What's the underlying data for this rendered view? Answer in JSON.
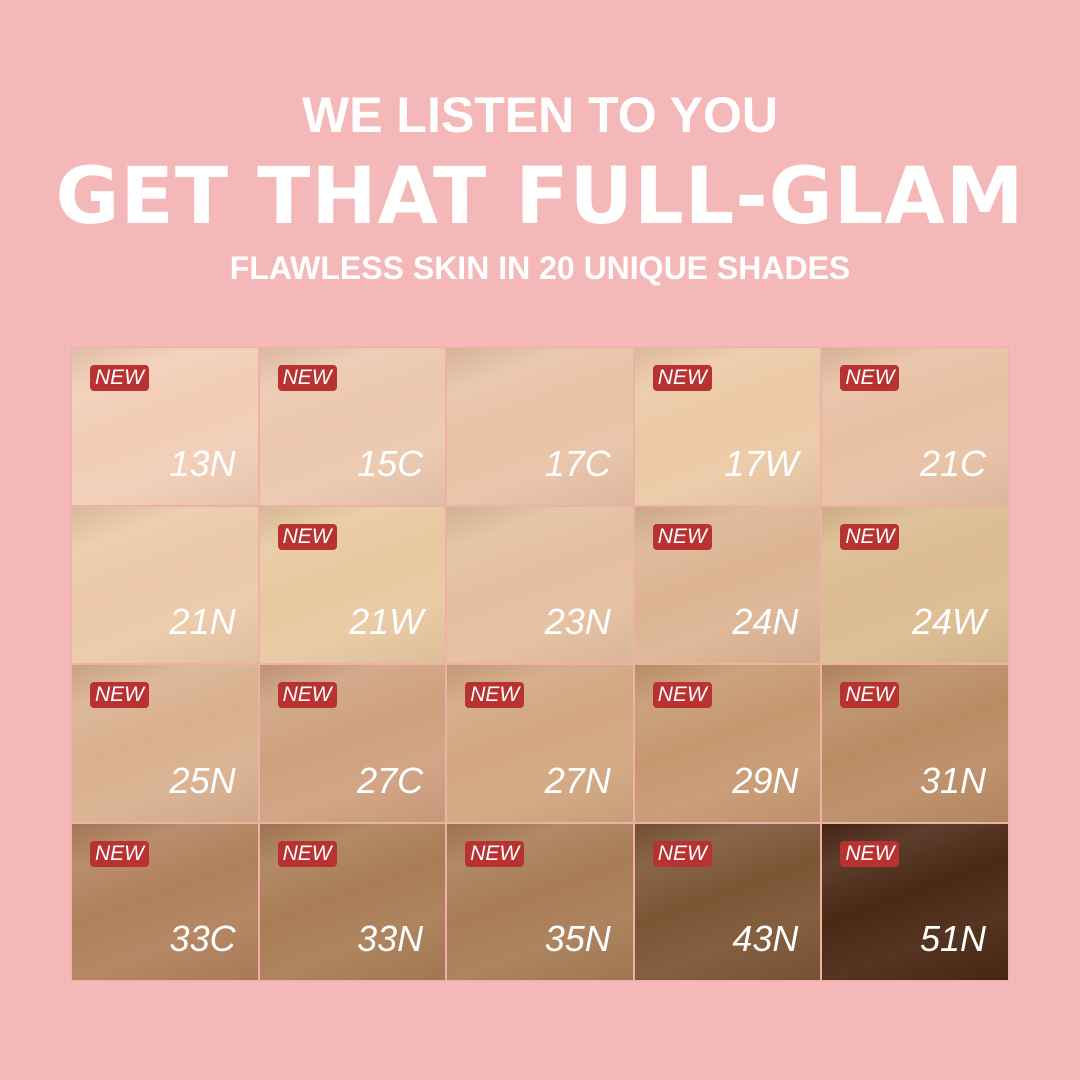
{
  "header": {
    "line1": "WE LISTEN TO YOU",
    "line2": "GET THAT FULL-GLAM",
    "line3": "FLAWLESS SKIN IN 20 UNIQUE SHADES"
  },
  "colors": {
    "background": "#f4b8b8",
    "badge": "#b83232"
  },
  "badge_label": "NEW",
  "shades": [
    {
      "name": "13N",
      "new": true,
      "color": "#f2cdb5"
    },
    {
      "name": "15C",
      "new": true,
      "color": "#ebc8ae"
    },
    {
      "name": "17C",
      "new": false,
      "color": "#e8c2a6"
    },
    {
      "name": "17W",
      "new": true,
      "color": "#ecc9a6"
    },
    {
      "name": "21C",
      "new": true,
      "color": "#e8c0a4"
    },
    {
      "name": "21N",
      "new": false,
      "color": "#ebc9a8"
    },
    {
      "name": "21W",
      "new": true,
      "color": "#e8c8a0"
    },
    {
      "name": "23N",
      "new": false,
      "color": "#e4bf9f"
    },
    {
      "name": "24N",
      "new": true,
      "color": "#dcb493"
    },
    {
      "name": "24W",
      "new": true,
      "color": "#dcbb90"
    },
    {
      "name": "25N",
      "new": true,
      "color": "#d9b08f"
    },
    {
      "name": "27C",
      "new": true,
      "color": "#cfa07f"
    },
    {
      "name": "27N",
      "new": true,
      "color": "#d2a680"
    },
    {
      "name": "29N",
      "new": true,
      "color": "#c69870"
    },
    {
      "name": "31N",
      "new": true,
      "color": "#ba8c64"
    },
    {
      "name": "33C",
      "new": true,
      "color": "#b1805c"
    },
    {
      "name": "33N",
      "new": true,
      "color": "#a97d55"
    },
    {
      "name": "35N",
      "new": true,
      "color": "#a87c56"
    },
    {
      "name": "43N",
      "new": true,
      "color": "#7c5535"
    },
    {
      "name": "51N",
      "new": true,
      "color": "#4a2814"
    }
  ]
}
